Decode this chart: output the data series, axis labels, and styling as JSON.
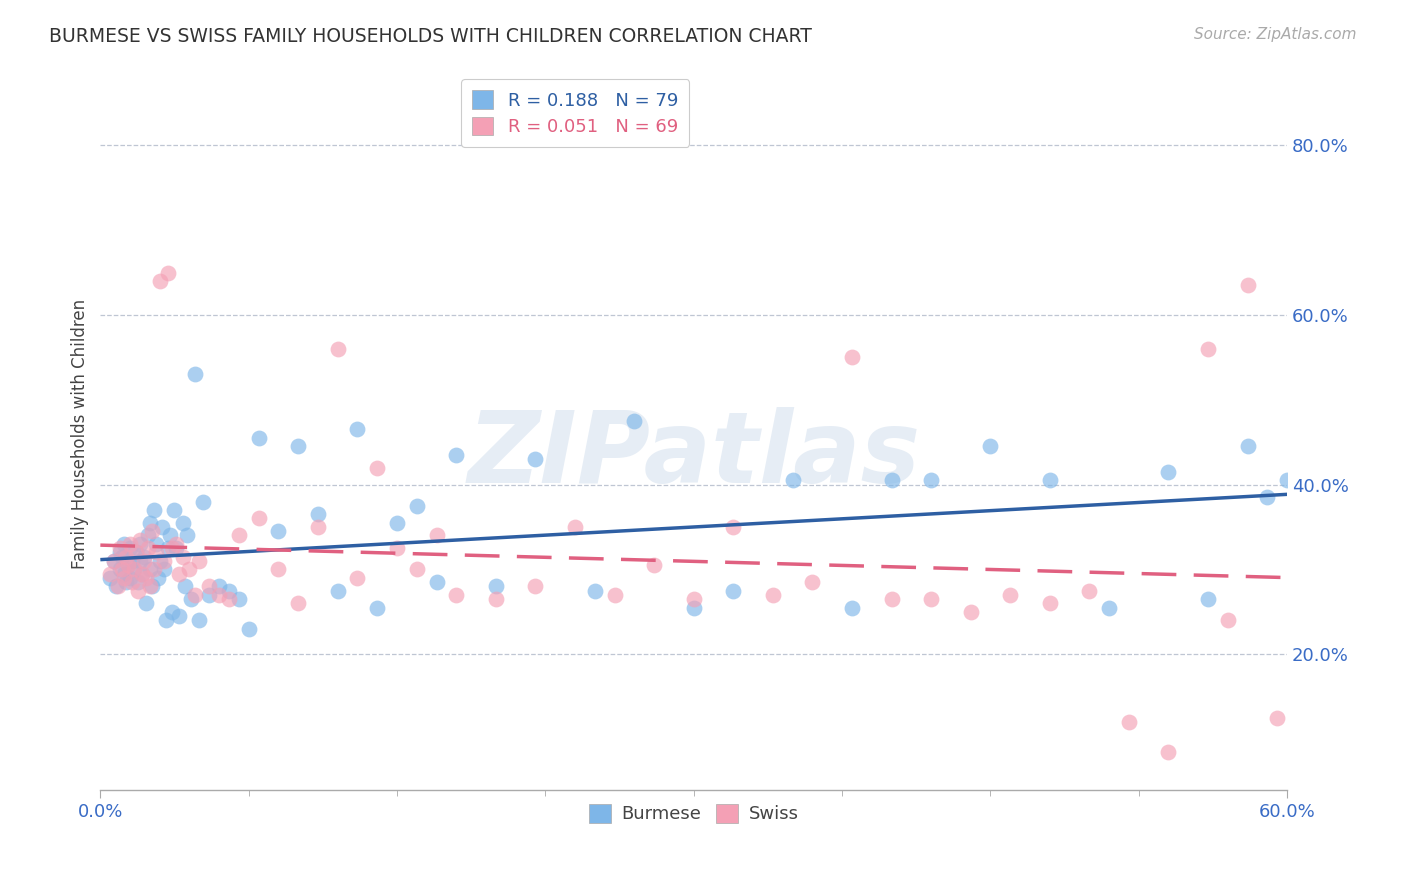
{
  "title": "BURMESE VS SWISS FAMILY HOUSEHOLDS WITH CHILDREN CORRELATION CHART",
  "source": "Source: ZipAtlas.com",
  "ylabel": "Family Households with Children",
  "ytick_vals": [
    0.2,
    0.4,
    0.6,
    0.8
  ],
  "xlim": [
    0.0,
    0.6
  ],
  "ylim": [
    0.04,
    0.88
  ],
  "burmese_color": "#7EB6E8",
  "swiss_color": "#F4A0B5",
  "burmese_line_color": "#2E5FA3",
  "swiss_line_color": "#E06080",
  "R_burmese": 0.188,
  "N_burmese": 79,
  "R_swiss": 0.051,
  "N_swiss": 69,
  "watermark": "ZIPatlas",
  "burmese_x": [
    0.005,
    0.007,
    0.008,
    0.01,
    0.01,
    0.011,
    0.012,
    0.012,
    0.013,
    0.014,
    0.015,
    0.015,
    0.016,
    0.017,
    0.018,
    0.019,
    0.02,
    0.02,
    0.021,
    0.022,
    0.023,
    0.024,
    0.025,
    0.025,
    0.026,
    0.027,
    0.028,
    0.029,
    0.03,
    0.031,
    0.032,
    0.033,
    0.034,
    0.035,
    0.036,
    0.037,
    0.038,
    0.04,
    0.042,
    0.043,
    0.044,
    0.046,
    0.048,
    0.05,
    0.052,
    0.055,
    0.06,
    0.065,
    0.07,
    0.075,
    0.08,
    0.09,
    0.1,
    0.11,
    0.12,
    0.13,
    0.14,
    0.15,
    0.16,
    0.17,
    0.18,
    0.2,
    0.22,
    0.25,
    0.27,
    0.3,
    0.32,
    0.35,
    0.38,
    0.4,
    0.42,
    0.45,
    0.48,
    0.51,
    0.54,
    0.56,
    0.58,
    0.59,
    0.6
  ],
  "burmese_y": [
    0.29,
    0.31,
    0.28,
    0.32,
    0.3,
    0.315,
    0.295,
    0.33,
    0.285,
    0.305,
    0.325,
    0.29,
    0.31,
    0.3,
    0.32,
    0.285,
    0.31,
    0.33,
    0.295,
    0.315,
    0.26,
    0.34,
    0.3,
    0.355,
    0.28,
    0.37,
    0.33,
    0.29,
    0.31,
    0.35,
    0.3,
    0.24,
    0.325,
    0.34,
    0.25,
    0.37,
    0.325,
    0.245,
    0.355,
    0.28,
    0.34,
    0.265,
    0.53,
    0.24,
    0.38,
    0.27,
    0.28,
    0.275,
    0.265,
    0.23,
    0.455,
    0.345,
    0.445,
    0.365,
    0.275,
    0.465,
    0.255,
    0.355,
    0.375,
    0.285,
    0.435,
    0.28,
    0.43,
    0.275,
    0.475,
    0.255,
    0.275,
    0.405,
    0.255,
    0.405,
    0.405,
    0.445,
    0.405,
    0.255,
    0.415,
    0.265,
    0.445,
    0.385,
    0.405
  ],
  "swiss_x": [
    0.005,
    0.007,
    0.009,
    0.01,
    0.011,
    0.012,
    0.013,
    0.014,
    0.015,
    0.016,
    0.017,
    0.018,
    0.019,
    0.02,
    0.021,
    0.022,
    0.023,
    0.024,
    0.025,
    0.026,
    0.027,
    0.028,
    0.03,
    0.032,
    0.034,
    0.036,
    0.038,
    0.04,
    0.042,
    0.045,
    0.048,
    0.05,
    0.055,
    0.06,
    0.065,
    0.07,
    0.08,
    0.09,
    0.1,
    0.11,
    0.12,
    0.13,
    0.14,
    0.15,
    0.16,
    0.17,
    0.18,
    0.2,
    0.22,
    0.24,
    0.26,
    0.28,
    0.3,
    0.32,
    0.34,
    0.36,
    0.38,
    0.4,
    0.42,
    0.44,
    0.46,
    0.48,
    0.5,
    0.52,
    0.54,
    0.56,
    0.57,
    0.58,
    0.595
  ],
  "swiss_y": [
    0.295,
    0.31,
    0.28,
    0.325,
    0.3,
    0.29,
    0.315,
    0.305,
    0.33,
    0.285,
    0.3,
    0.32,
    0.275,
    0.335,
    0.295,
    0.31,
    0.29,
    0.325,
    0.28,
    0.345,
    0.3,
    0.32,
    0.64,
    0.31,
    0.65,
    0.325,
    0.33,
    0.295,
    0.315,
    0.3,
    0.27,
    0.31,
    0.28,
    0.27,
    0.265,
    0.34,
    0.36,
    0.3,
    0.26,
    0.35,
    0.56,
    0.29,
    0.42,
    0.325,
    0.3,
    0.34,
    0.27,
    0.265,
    0.28,
    0.35,
    0.27,
    0.305,
    0.265,
    0.35,
    0.27,
    0.285,
    0.55,
    0.265,
    0.265,
    0.25,
    0.27,
    0.26,
    0.275,
    0.12,
    0.085,
    0.56,
    0.24,
    0.635,
    0.125
  ]
}
